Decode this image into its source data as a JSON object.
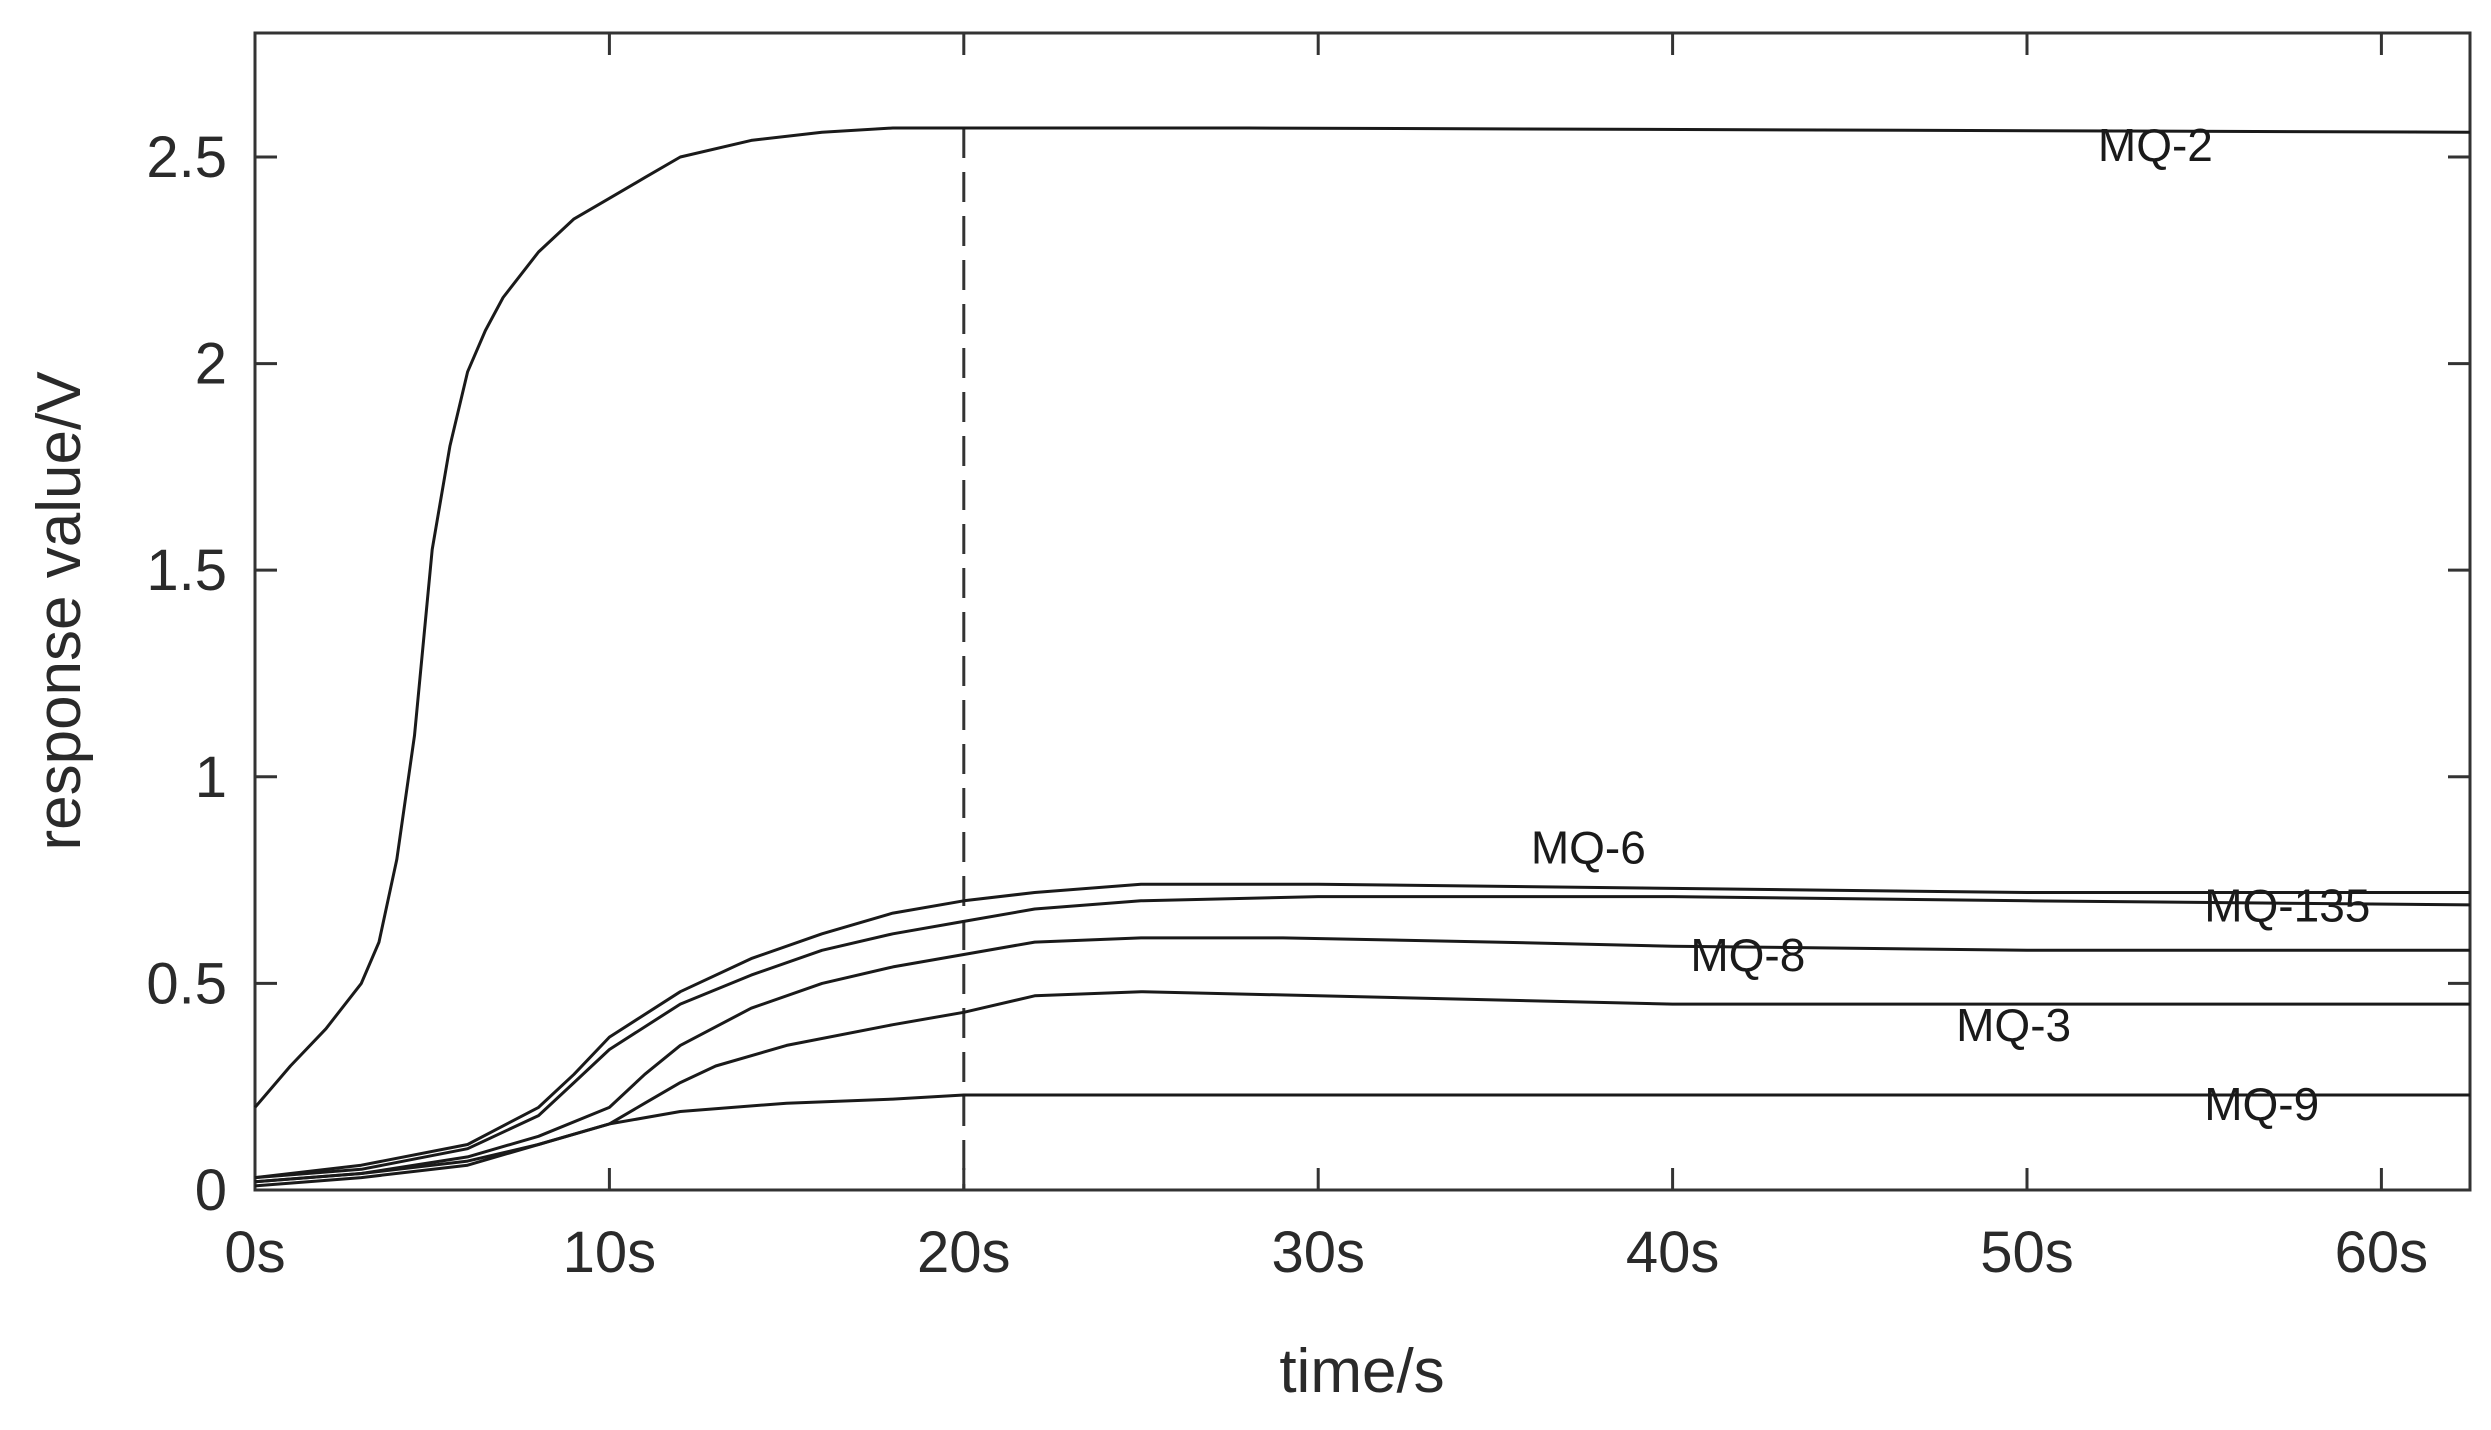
{
  "chart_data": {
    "type": "line",
    "title": "",
    "xlabel": "time/s",
    "ylabel": "response value/V",
    "xlim": [
      0,
      62.5
    ],
    "ylim": [
      0,
      2.8
    ],
    "x_ticks": [
      0,
      10,
      20,
      30,
      40,
      50,
      60
    ],
    "x_tick_labels": [
      "0s",
      "10s",
      "20s",
      "30s",
      "40s",
      "50s",
      "60s"
    ],
    "y_ticks": [
      0,
      0.5,
      1,
      1.5,
      2,
      2.5
    ],
    "y_tick_labels": [
      "0",
      "0.5",
      "1",
      "1.5",
      "2",
      "2.5"
    ],
    "grid": false,
    "legend": "none",
    "line_color": "#1a1a1a",
    "reference_line": {
      "x": 20,
      "style": "dashed"
    },
    "series": [
      {
        "name": "MQ-2",
        "label_at": [
          52,
          2.49
        ],
        "points": [
          [
            0,
            0.2
          ],
          [
            1,
            0.3
          ],
          [
            2,
            0.39
          ],
          [
            3,
            0.5
          ],
          [
            3.5,
            0.6
          ],
          [
            4,
            0.8
          ],
          [
            4.5,
            1.1
          ],
          [
            5,
            1.55
          ],
          [
            5.5,
            1.8
          ],
          [
            6,
            1.98
          ],
          [
            6.5,
            2.08
          ],
          [
            7,
            2.16
          ],
          [
            8,
            2.27
          ],
          [
            9,
            2.35
          ],
          [
            10,
            2.4
          ],
          [
            11,
            2.45
          ],
          [
            12,
            2.5
          ],
          [
            14,
            2.54
          ],
          [
            16,
            2.56
          ],
          [
            18,
            2.57
          ],
          [
            20,
            2.57
          ],
          [
            28,
            2.57
          ],
          [
            62.5,
            2.56
          ]
        ]
      },
      {
        "name": "MQ-6",
        "label_at": [
          36,
          0.79
        ],
        "points": [
          [
            0,
            0.03
          ],
          [
            3,
            0.06
          ],
          [
            6,
            0.11
          ],
          [
            8,
            0.2
          ],
          [
            9,
            0.28
          ],
          [
            10,
            0.37
          ],
          [
            12,
            0.48
          ],
          [
            14,
            0.56
          ],
          [
            16,
            0.62
          ],
          [
            18,
            0.67
          ],
          [
            20,
            0.7
          ],
          [
            22,
            0.72
          ],
          [
            25,
            0.74
          ],
          [
            30,
            0.74
          ],
          [
            40,
            0.73
          ],
          [
            50,
            0.72
          ],
          [
            62.5,
            0.72
          ]
        ]
      },
      {
        "name": "MQ-135",
        "label_at": [
          55,
          0.65
        ],
        "points": [
          [
            0,
            0.03
          ],
          [
            3,
            0.05
          ],
          [
            6,
            0.1
          ],
          [
            8,
            0.18
          ],
          [
            9,
            0.26
          ],
          [
            10,
            0.34
          ],
          [
            12,
            0.45
          ],
          [
            14,
            0.52
          ],
          [
            16,
            0.58
          ],
          [
            18,
            0.62
          ],
          [
            20,
            0.65
          ],
          [
            22,
            0.68
          ],
          [
            25,
            0.7
          ],
          [
            30,
            0.71
          ],
          [
            40,
            0.71
          ],
          [
            50,
            0.7
          ],
          [
            62.5,
            0.69
          ]
        ]
      },
      {
        "name": "MQ-8",
        "label_at": [
          40.5,
          0.53
        ],
        "points": [
          [
            0,
            0.02
          ],
          [
            3,
            0.04
          ],
          [
            6,
            0.08
          ],
          [
            8,
            0.13
          ],
          [
            10,
            0.2
          ],
          [
            11,
            0.28
          ],
          [
            12,
            0.35
          ],
          [
            14,
            0.44
          ],
          [
            16,
            0.5
          ],
          [
            18,
            0.54
          ],
          [
            20,
            0.57
          ],
          [
            22,
            0.6
          ],
          [
            25,
            0.61
          ],
          [
            29,
            0.61
          ],
          [
            35,
            0.6
          ],
          [
            40,
            0.59
          ],
          [
            50,
            0.58
          ],
          [
            62.5,
            0.58
          ]
        ]
      },
      {
        "name": "MQ-3",
        "label_at": [
          48,
          0.36
        ],
        "points": [
          [
            0,
            0.01
          ],
          [
            3,
            0.03
          ],
          [
            6,
            0.06
          ],
          [
            8,
            0.11
          ],
          [
            10,
            0.16
          ],
          [
            11,
            0.21
          ],
          [
            12,
            0.26
          ],
          [
            13,
            0.3
          ],
          [
            15,
            0.35
          ],
          [
            18,
            0.4
          ],
          [
            20,
            0.43
          ],
          [
            22,
            0.47
          ],
          [
            25,
            0.48
          ],
          [
            30,
            0.47
          ],
          [
            40,
            0.45
          ],
          [
            50,
            0.45
          ],
          [
            62.5,
            0.45
          ]
        ]
      },
      {
        "name": "MQ-9",
        "label_at": [
          55,
          0.17
        ],
        "points": [
          [
            0,
            0.02
          ],
          [
            3,
            0.04
          ],
          [
            6,
            0.07
          ],
          [
            8,
            0.11
          ],
          [
            10,
            0.16
          ],
          [
            12,
            0.19
          ],
          [
            15,
            0.21
          ],
          [
            18,
            0.22
          ],
          [
            20,
            0.23
          ],
          [
            25,
            0.23
          ],
          [
            30,
            0.23
          ],
          [
            40,
            0.23
          ],
          [
            50,
            0.23
          ],
          [
            62.5,
            0.23
          ]
        ]
      }
    ]
  }
}
